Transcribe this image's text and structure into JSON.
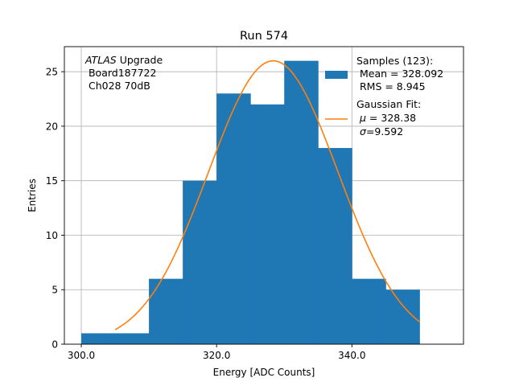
{
  "chart_data": {
    "type": "bar",
    "title": "Run 574",
    "xlabel": "Energy [ADC Counts]",
    "ylabel": "Entries",
    "xlim": [
      297.5,
      356.5
    ],
    "ylim": [
      0,
      27.3
    ],
    "grid": true,
    "x_ticks": [
      300,
      320,
      340
    ],
    "x_tick_labels": [
      "300.0",
      "320.0",
      "340.0"
    ],
    "y_ticks": [
      0,
      5,
      10,
      15,
      20,
      25
    ],
    "y_tick_labels": [
      "0",
      "5",
      "10",
      "15",
      "20",
      "25"
    ],
    "histogram": {
      "name": "Samples",
      "bins": [
        {
          "x0": 300,
          "x1": 305,
          "count": 1
        },
        {
          "x0": 305,
          "x1": 310,
          "count": 1
        },
        {
          "x0": 310,
          "x1": 315,
          "count": 6
        },
        {
          "x0": 315,
          "x1": 320,
          "count": 15
        },
        {
          "x0": 320,
          "x1": 325,
          "count": 23
        },
        {
          "x0": 325,
          "x1": 330,
          "count": 22
        },
        {
          "x0": 330,
          "x1": 335,
          "count": 26
        },
        {
          "x0": 335,
          "x1": 340,
          "count": 18
        },
        {
          "x0": 340,
          "x1": 345,
          "count": 6
        },
        {
          "x0": 345,
          "x1": 350,
          "count": 5
        }
      ],
      "color": "#1f77b4"
    },
    "fit": {
      "name": "Gaussian Fit",
      "mu": 328.38,
      "sigma": 9.592,
      "peak": 26.0,
      "x_range": [
        305,
        350
      ],
      "color": "#ff7f0e"
    },
    "legend_location": "top-right",
    "legend": {
      "samples_title": "Samples (123):",
      "samples_mean": " Mean = 328.092",
      "samples_rms": " RMS = 8.945",
      "fit_title": "Gaussian Fit:",
      "fit_mu_symbol": "μ",
      "fit_mu_value": " = 328.38",
      "fit_sigma_symbol": "σ",
      "fit_sigma_value": "=9.592"
    },
    "annotation": {
      "experiment": "ATLAS",
      "experiment_suffix": " Upgrade",
      "board": " Board187722",
      "channel": " Ch028 70dB"
    }
  }
}
